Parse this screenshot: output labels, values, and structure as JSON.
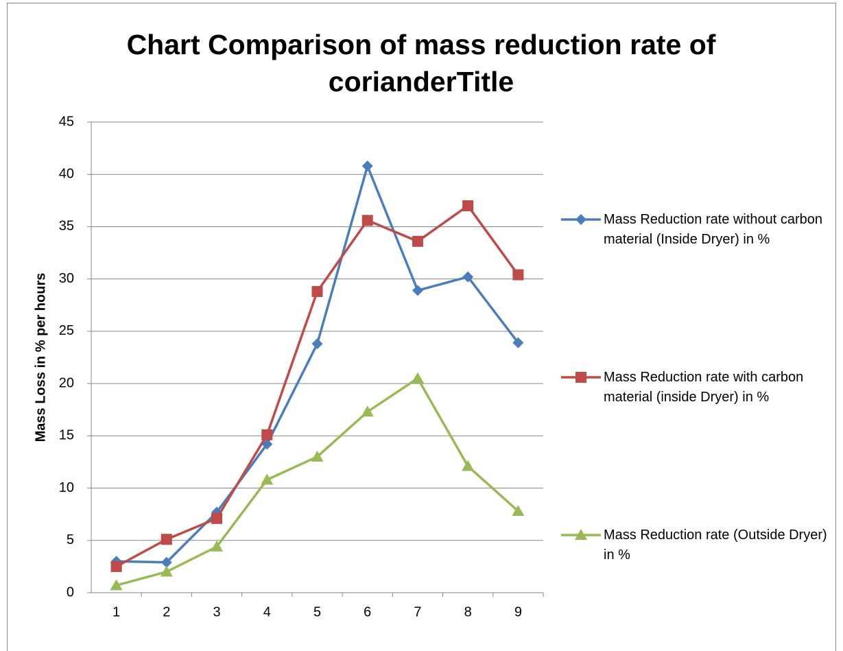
{
  "chart_data": {
    "type": "line",
    "title": "Chart Comparison of mass reduction rate of corianderTitle",
    "y_label": "Mass Loss in % per hours",
    "categories": [
      1,
      2,
      3,
      4,
      5,
      6,
      7,
      8,
      9
    ],
    "series": [
      {
        "name": "Mass Reduction rate without carbon material (Inside Dryer) in %",
        "color": "#4a7ebb",
        "marker": "diamond",
        "values": [
          3.0,
          2.9,
          7.7,
          14.2,
          23.8,
          40.8,
          28.9,
          30.2,
          23.9
        ]
      },
      {
        "name": "Mass Reduction rate with carbon material (inside Dryer) in %",
        "color": "#be4b48",
        "marker": "square",
        "values": [
          2.5,
          5.1,
          7.1,
          15.1,
          28.8,
          35.6,
          33.6,
          37.0,
          30.4
        ]
      },
      {
        "name": "Mass Reduction rate (Outside Dryer) in %",
        "color": "#98b954",
        "marker": "triangle",
        "values": [
          0.7,
          2.0,
          4.4,
          10.8,
          13.0,
          17.3,
          20.5,
          12.1,
          7.8
        ]
      }
    ],
    "ylim": [
      0,
      45
    ],
    "yticks": [
      0,
      5,
      10,
      15,
      20,
      25,
      30,
      35,
      40,
      45
    ],
    "grid": true,
    "legend": "right"
  }
}
